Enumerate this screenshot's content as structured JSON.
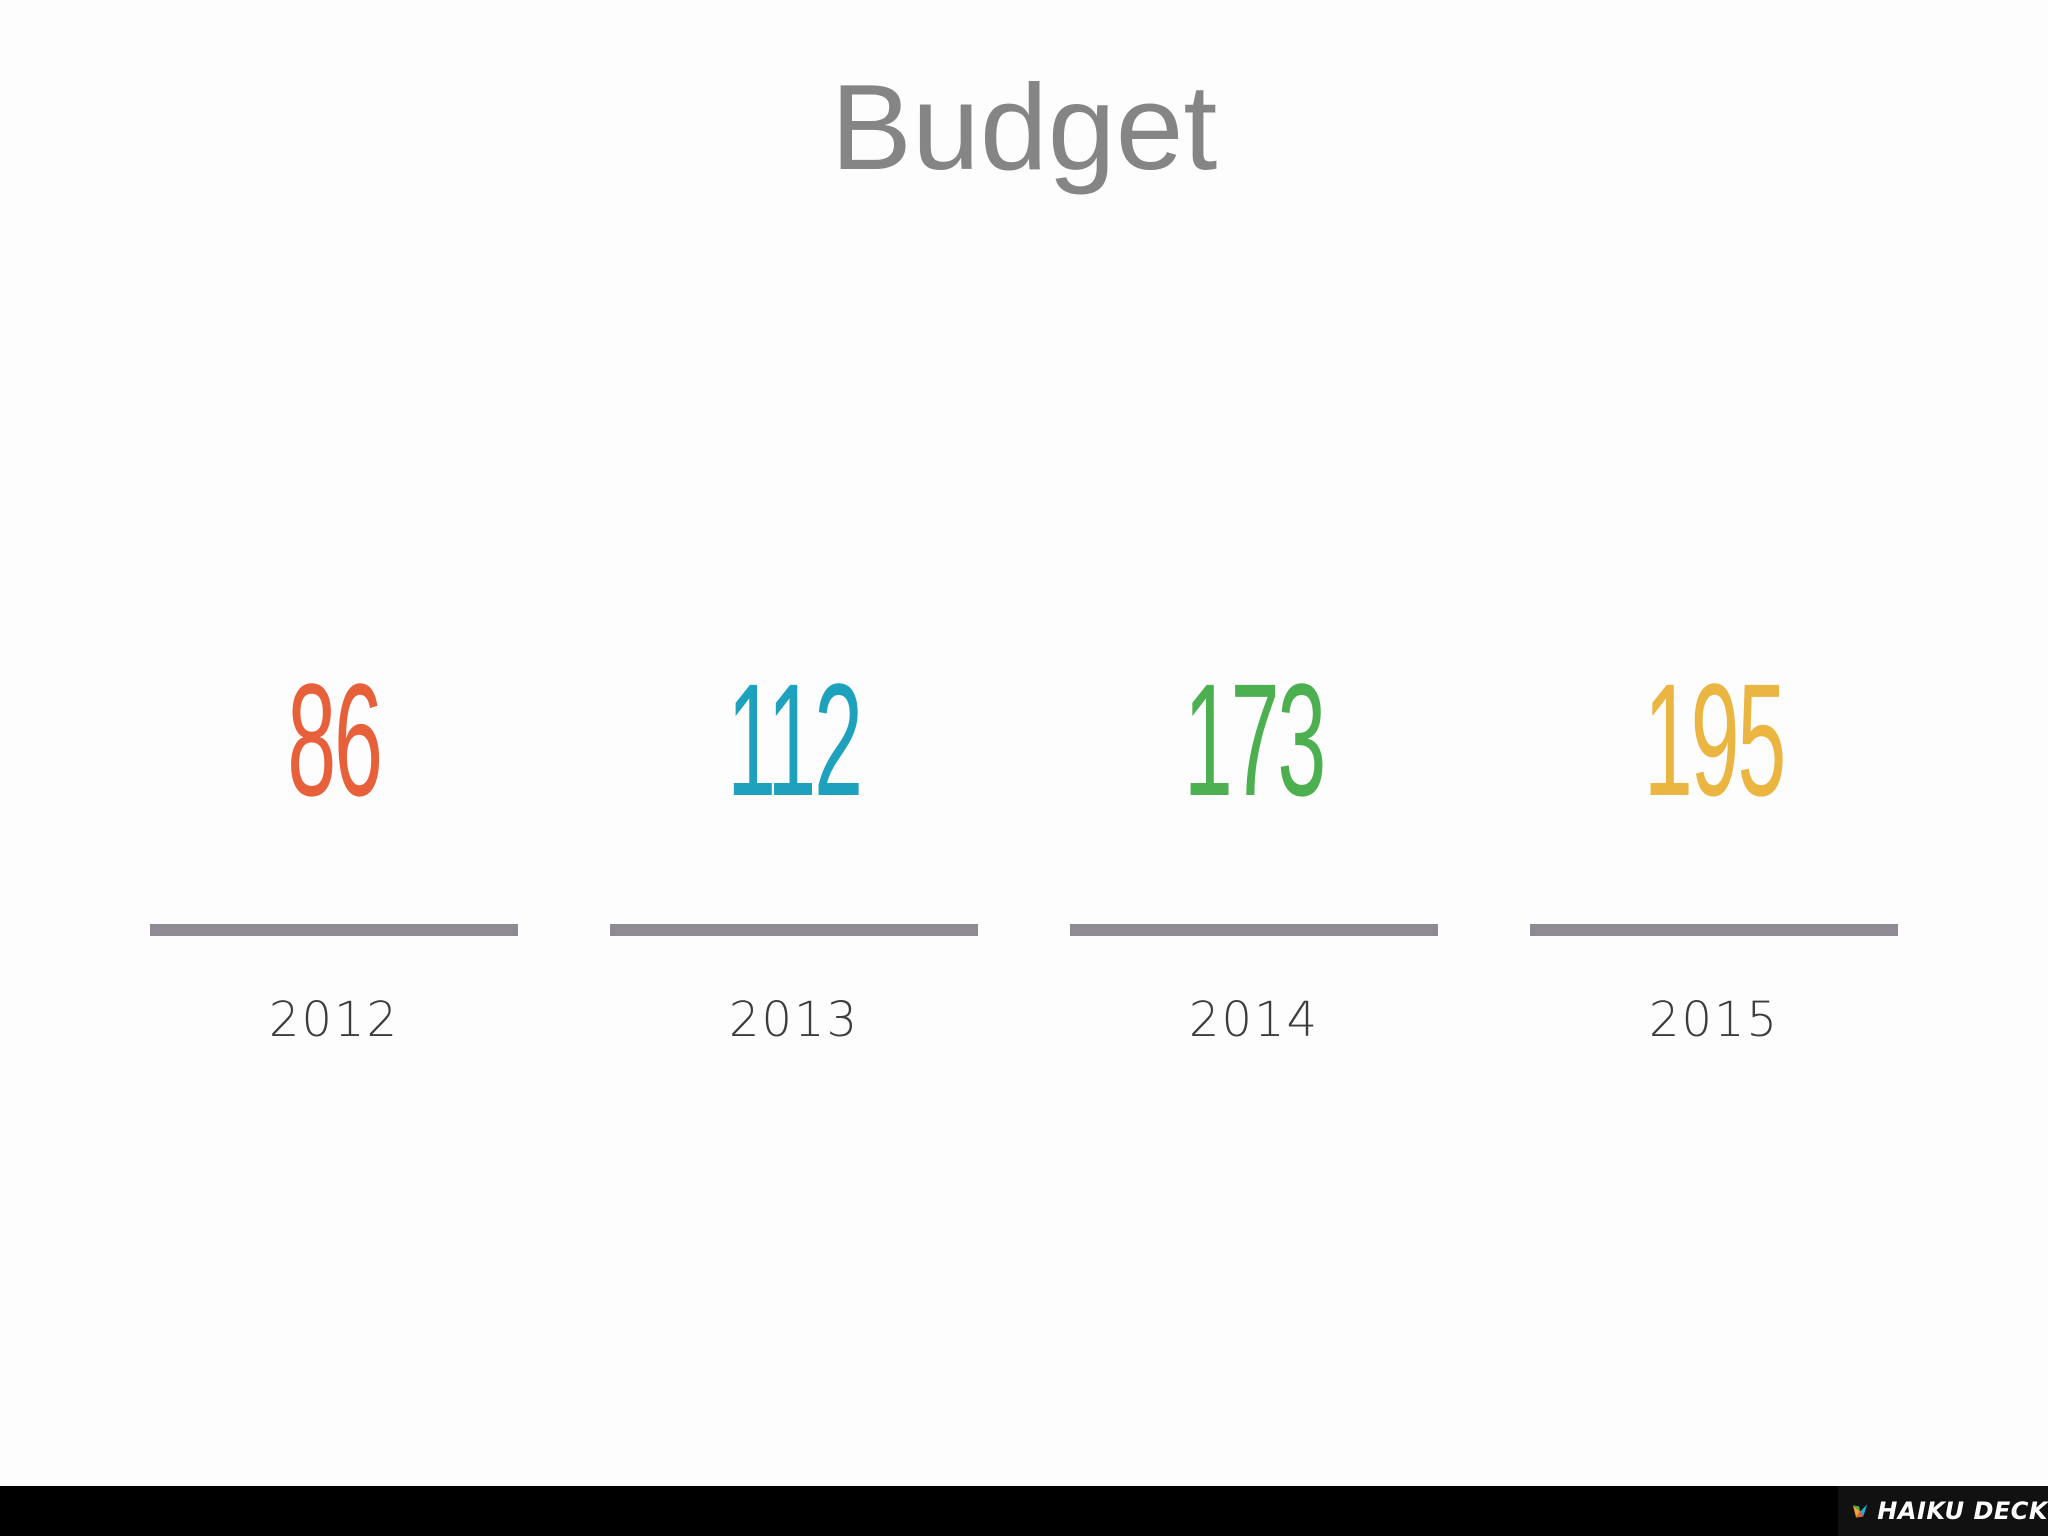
{
  "title": "Budget",
  "chart_data": {
    "type": "bar",
    "title": "Budget",
    "categories": [
      "2012",
      "2013",
      "2014",
      "2015"
    ],
    "values": [
      86,
      112,
      173,
      195
    ],
    "value_colors": [
      "#e8603a",
      "#1ea1bd",
      "#4caf50",
      "#eab540"
    ]
  },
  "stats": [
    {
      "value": "86",
      "year": "2012",
      "color": "#e8603a"
    },
    {
      "value": "112",
      "year": "2013",
      "color": "#1ea1bd"
    },
    {
      "value": "173",
      "year": "2014",
      "color": "#4caf50"
    },
    {
      "value": "195",
      "year": "2015",
      "color": "#eab540"
    }
  ],
  "footer": {
    "brand": "HAIKU DECK",
    "logo_icon": "haiku-deck-logo-icon"
  }
}
